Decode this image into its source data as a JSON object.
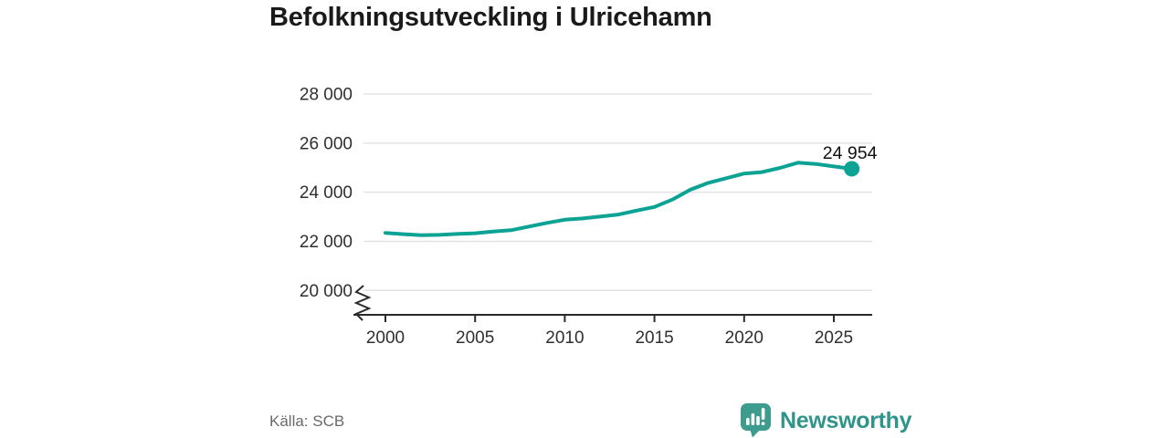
{
  "title": "Befolkningsutveckling i Ulricehamn",
  "source": "Källa: SCB",
  "branding": {
    "logo_text": "Newsworthy",
    "logo_icon": "bar-chart-speech-bubble-icon"
  },
  "colors": {
    "line": "#0ca294",
    "grid": "#e3e3e3",
    "axis": "#2a2a2a",
    "tick_text": "#2f2f2f",
    "title_text": "#1a1a1a",
    "muted_text": "#6a6a6a",
    "logo_bubble": "#3e9c8e",
    "logo_text": "#2f948a",
    "end_label_text": "#111111"
  },
  "chart_data": {
    "type": "line",
    "title": "Befolkningsutveckling i Ulricehamn",
    "x": [
      2000,
      2001,
      2002,
      2003,
      2004,
      2005,
      2006,
      2007,
      2008,
      2009,
      2010,
      2011,
      2012,
      2013,
      2014,
      2015,
      2016,
      2017,
      2018,
      2019,
      2020,
      2021,
      2022,
      2023,
      2024,
      2025,
      2026
    ],
    "values": [
      22340,
      22290,
      22250,
      22260,
      22300,
      22330,
      22400,
      22450,
      22600,
      22750,
      22880,
      22930,
      23010,
      23090,
      23250,
      23400,
      23700,
      24100,
      24380,
      24570,
      24760,
      24820,
      24990,
      25200,
      25150,
      25050,
      24954
    ],
    "latest_value": 24954,
    "latest_label": "24 954",
    "ylim": [
      20000,
      28000
    ],
    "yticks": [
      {
        "value": 20000,
        "label": "20 000"
      },
      {
        "value": 22000,
        "label": "22 000"
      },
      {
        "value": 24000,
        "label": "24 000"
      },
      {
        "value": 26000,
        "label": "26 000"
      },
      {
        "value": 28000,
        "label": "28 000"
      }
    ],
    "xticks": [
      {
        "value": 2000,
        "label": "2000"
      },
      {
        "value": 2005,
        "label": "2005"
      },
      {
        "value": 2010,
        "label": "2010"
      },
      {
        "value": 2015,
        "label": "2015"
      },
      {
        "value": 2020,
        "label": "2020"
      },
      {
        "value": 2025,
        "label": "2025"
      }
    ],
    "grid": true,
    "legend": false,
    "axis_break": true,
    "xlabel": "",
    "ylabel": ""
  }
}
